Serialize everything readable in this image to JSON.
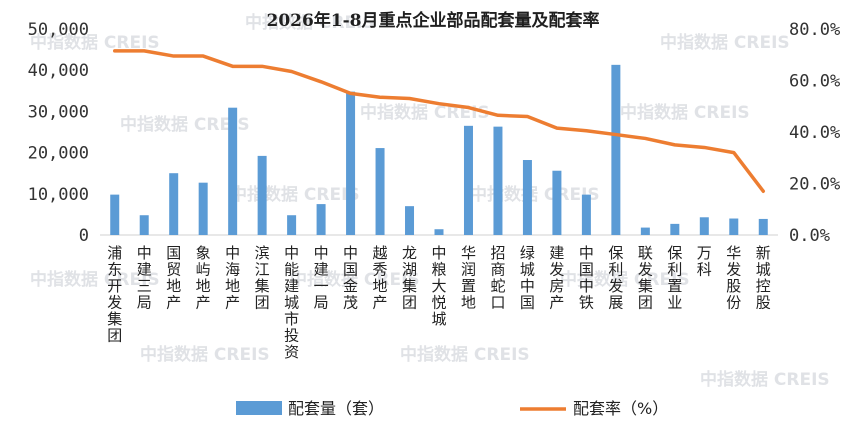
{
  "chart_data": {
    "type": "bar",
    "title": "2026年1-8月重点企业部品配套量及配套率",
    "categories": [
      "浦东开发集团",
      "中建三局",
      "国贸地产",
      "象屿地产",
      "中海地产",
      "滨江集团",
      "中能建城市投资",
      "中建一局",
      "中国金茂",
      "越秀地产",
      "龙湖集团",
      "中粮大悦城",
      "华润置地",
      "招商蛇口",
      "绿城中国",
      "建发房产",
      "中国中铁",
      "保利发展",
      "联发集团",
      "保利置业",
      "万科",
      "华发股份",
      "新城控股"
    ],
    "series": [
      {
        "name": "配套量（套）",
        "type": "bar",
        "axis": "left",
        "color": "#5b9bd5",
        "values": [
          9800,
          4800,
          15000,
          12700,
          30900,
          19200,
          4800,
          7500,
          34800,
          21100,
          7000,
          1400,
          26500,
          26300,
          18200,
          15600,
          9800,
          41300,
          1800,
          2700,
          4300,
          4000,
          3900
        ]
      },
      {
        "name": "配套率（%）",
        "type": "line",
        "axis": "right",
        "color": "#ed7d31",
        "values": [
          71.5,
          71.5,
          69.5,
          69.5,
          65.5,
          65.5,
          63.5,
          59.5,
          55.0,
          53.5,
          53.0,
          51.0,
          49.5,
          46.5,
          46.0,
          41.5,
          40.5,
          39.0,
          37.5,
          35.0,
          34.0,
          32.0,
          17.0
        ]
      }
    ],
    "y_left": {
      "ylim": [
        0,
        50000
      ],
      "ticks": [
        "0",
        "10,000",
        "20,000",
        "30,000",
        "40,000",
        "50,000"
      ]
    },
    "y_right": {
      "ylim": [
        0,
        80
      ],
      "ticks": [
        "0.0%",
        "20.0%",
        "40.0%",
        "60.0%",
        "80.0%"
      ]
    },
    "legend": "bottom",
    "grid": false
  },
  "watermark": "中指数据 CREIS"
}
